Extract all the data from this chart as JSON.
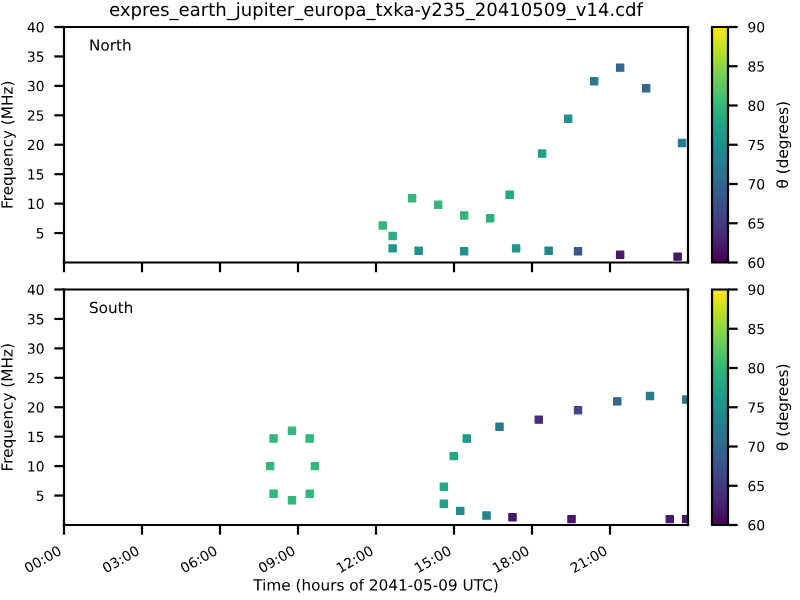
{
  "chart_data": [
    {
      "type": "scatter",
      "title": "expres_earth_jupiter_europa_txka-y235_20410509_v14.cdf",
      "ylabel": "Frequency (MHz)",
      "clabel": "θ (degrees)",
      "annotations": [
        "North"
      ],
      "tick_labels": "y",
      "marker": "square",
      "grid": false,
      "xlim": [
        0,
        24
      ],
      "xticks": [
        {
          "value": 0,
          "label": null
        },
        {
          "value": 3,
          "label": null
        },
        {
          "value": 6,
          "label": null
        },
        {
          "value": 9,
          "label": null
        },
        {
          "value": 12,
          "label": null
        },
        {
          "value": 15,
          "label": null
        },
        {
          "value": 18,
          "label": null
        },
        {
          "value": 21,
          "label": null
        }
      ],
      "ylim": [
        0,
        40
      ],
      "yticks": [
        5,
        10,
        15,
        20,
        25,
        30,
        35,
        40
      ],
      "clim": [
        60,
        90
      ],
      "cticks": [
        60,
        65,
        70,
        75,
        80,
        85,
        90
      ],
      "series": [
        {
          "x": [
            12.64,
            12.26,
            13.39,
            14.39,
            15.39,
            16.39,
            17.14,
            18.39,
            19.39,
            20.39,
            21.39,
            22.39,
            23.77
          ],
          "values": [
            4.5,
            6.3,
            10.9,
            9.8,
            8.0,
            7.5,
            11.5,
            18.5,
            24.4,
            30.8,
            33.1,
            29.6,
            20.3
          ],
          "cvalues": [
            79,
            80,
            80,
            80,
            80,
            79,
            78,
            77,
            75,
            72,
            70,
            70,
            72
          ],
          "colors": [
            "#2ab07f",
            "#35b779",
            "#35b779",
            "#35b779",
            "#35b779",
            "#2ab07f",
            "#22a884",
            "#1fa088",
            "#21918c",
            "#2a788e",
            "#33638d",
            "#33638d",
            "#2a788e"
          ]
        },
        {
          "x": [
            12.64,
            13.64,
            15.39,
            17.39,
            18.64,
            19.77,
            21.39,
            23.6
          ],
          "values": [
            2.4,
            2.0,
            1.9,
            2.4,
            2.0,
            1.9,
            1.3,
            1.0
          ],
          "cvalues": [
            76,
            75,
            75,
            76,
            74,
            68,
            62,
            62
          ],
          "colors": [
            "#1f988b",
            "#21918c",
            "#21918c",
            "#1f988b",
            "#24878e",
            "#3b528b",
            "#471365",
            "#471365"
          ]
        }
      ]
    },
    {
      "type": "scatter",
      "xlabel": "Time (hours of 2041-05-09 UTC)",
      "ylabel": "Frequency (MHz)",
      "clabel": "θ (degrees)",
      "annotations": [
        "South"
      ],
      "marker": "square",
      "grid": false,
      "xlim": [
        0,
        24
      ],
      "xticks": [
        {
          "value": 0,
          "label": "00:00"
        },
        {
          "value": 3,
          "label": "03:00"
        },
        {
          "value": 6,
          "label": "06:00"
        },
        {
          "value": 9,
          "label": "09:00"
        },
        {
          "value": 12,
          "label": "12:00"
        },
        {
          "value": 15,
          "label": "15:00"
        },
        {
          "value": 18,
          "label": "18:00"
        },
        {
          "value": 21,
          "label": "21:00"
        }
      ],
      "ylim": [
        0,
        40
      ],
      "yticks": [
        5,
        10,
        15,
        20,
        25,
        30,
        35,
        40
      ],
      "clim": [
        60,
        90
      ],
      "cticks": [
        60,
        65,
        70,
        75,
        80,
        85,
        90
      ],
      "series": [
        {
          "x": [
            8.77,
            9.45,
            9.65,
            9.45,
            8.77,
            8.06,
            7.93,
            8.06
          ],
          "values": [
            16.0,
            14.7,
            10.0,
            5.3,
            4.2,
            5.3,
            10.0,
            14.7
          ],
          "cvalues": [
            80,
            80,
            80,
            80,
            80,
            80,
            80,
            80
          ],
          "color": "#35b779"
        },
        {
          "x": [
            14.61,
            14.99,
            15.49,
            16.75,
            18.26,
            19.77,
            21.28,
            22.54,
            23.93
          ],
          "values": [
            6.5,
            11.7,
            14.7,
            16.7,
            17.9,
            19.5,
            21.0,
            21.9,
            21.3
          ],
          "cvalues": [
            78,
            78,
            76,
            72,
            64,
            66,
            70,
            72,
            72
          ],
          "colors": [
            "#22a884",
            "#22a884",
            "#1f988b",
            "#2a788e",
            "#472c7a",
            "#414487",
            "#33638d",
            "#2a788e",
            "#2a788e"
          ]
        },
        {
          "x": [
            14.61,
            15.24,
            16.25,
            17.25,
            19.52,
            23.3,
            23.93
          ],
          "values": [
            3.6,
            2.4,
            1.6,
            1.3,
            1.0,
            1.0,
            1.0
          ],
          "cvalues": [
            77,
            74,
            74,
            62,
            62,
            62,
            62
          ],
          "colors": [
            "#1fa088",
            "#24878e",
            "#24878e",
            "#471365",
            "#471365",
            "#471365",
            "#471365"
          ]
        }
      ]
    }
  ]
}
